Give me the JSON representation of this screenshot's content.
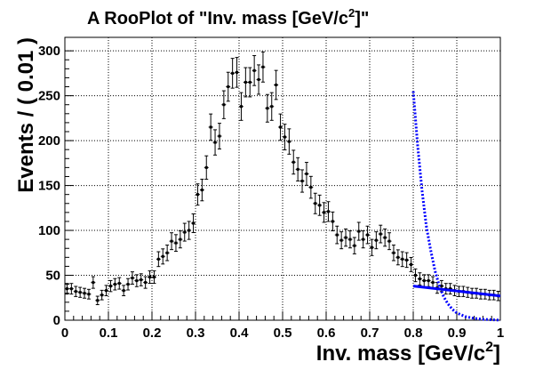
{
  "chart_data": {
    "type": "scatter",
    "title_main": "A RooPlot of \"Inv. mass [GeV/c",
    "title_sup": "2",
    "title_end": "]\"",
    "xlabel_main": "Inv. mass [GeV/c",
    "xlabel_sup": "2",
    "xlabel_end": "]",
    "ylabel": "Events / ( 0.01 )",
    "xlim": [
      0,
      1
    ],
    "ylim": [
      0,
      315
    ],
    "x_ticks": [
      "0",
      "0.1",
      "0.2",
      "0.3",
      "0.4",
      "0.5",
      "0.6",
      "0.7",
      "0.8",
      "0.9",
      "1"
    ],
    "y_ticks": [
      "0",
      "50",
      "100",
      "150",
      "200",
      "250",
      "300"
    ],
    "grid": true,
    "series": [
      {
        "style": "points-with-errorbars",
        "color": "#000000",
        "x": [
          0.005,
          0.015,
          0.025,
          0.035,
          0.045,
          0.055,
          0.065,
          0.075,
          0.085,
          0.095,
          0.105,
          0.115,
          0.125,
          0.135,
          0.145,
          0.155,
          0.165,
          0.175,
          0.185,
          0.195,
          0.205,
          0.215,
          0.225,
          0.235,
          0.245,
          0.255,
          0.265,
          0.275,
          0.285,
          0.295,
          0.305,
          0.315,
          0.325,
          0.335,
          0.345,
          0.355,
          0.365,
          0.375,
          0.385,
          0.395,
          0.405,
          0.415,
          0.425,
          0.435,
          0.445,
          0.455,
          0.465,
          0.475,
          0.485,
          0.495,
          0.505,
          0.515,
          0.525,
          0.535,
          0.545,
          0.555,
          0.565,
          0.575,
          0.585,
          0.595,
          0.605,
          0.615,
          0.625,
          0.635,
          0.645,
          0.655,
          0.665,
          0.675,
          0.685,
          0.695,
          0.705,
          0.715,
          0.725,
          0.735,
          0.745,
          0.755,
          0.765,
          0.775,
          0.785,
          0.795,
          0.805,
          0.815,
          0.825,
          0.835,
          0.845,
          0.855,
          0.865,
          0.875,
          0.885,
          0.895,
          0.905,
          0.915,
          0.925,
          0.935,
          0.945,
          0.955,
          0.965,
          0.975,
          0.985,
          0.995
        ],
        "y": [
          35,
          35,
          32,
          31,
          30,
          29,
          42,
          22,
          28,
          33,
          38,
          40,
          41,
          33,
          40,
          47,
          44,
          45,
          42,
          48,
          48,
          68,
          71,
          75,
          88,
          86,
          90,
          98,
          100,
          108,
          140,
          145,
          170,
          215,
          198,
          205,
          240,
          260,
          275,
          276,
          238,
          265,
          265,
          278,
          268,
          282,
          236,
          238,
          262,
          215,
          204,
          199,
          176,
          168,
          155,
          163,
          148,
          130,
          128,
          120,
          121,
          110,
          95,
          89,
          92,
          90,
          83,
          99,
          90,
          95,
          81,
          89,
          96,
          92,
          88,
          75,
          70,
          68,
          67,
          62,
          50,
          46,
          44,
          44,
          42,
          36,
          38,
          35,
          35,
          33,
          32,
          32,
          31,
          30,
          30,
          29,
          29,
          28,
          28,
          27
        ]
      },
      {
        "style": "line-solid",
        "color": "#0000ff",
        "x": [
          0.8,
          1.0
        ],
        "y": [
          38,
          27
        ]
      },
      {
        "style": "line-dotted",
        "color": "#0000ff",
        "x": [
          0.8,
          0.81,
          0.82,
          0.83,
          0.84,
          0.85,
          0.86,
          0.87,
          0.88,
          0.89,
          0.9,
          0.92,
          0.94,
          0.96,
          0.98,
          1.0
        ],
        "y": [
          255,
          195,
          145,
          105,
          78,
          55,
          38,
          26,
          18,
          12,
          8,
          4,
          2,
          1,
          0.5,
          0
        ]
      }
    ]
  }
}
